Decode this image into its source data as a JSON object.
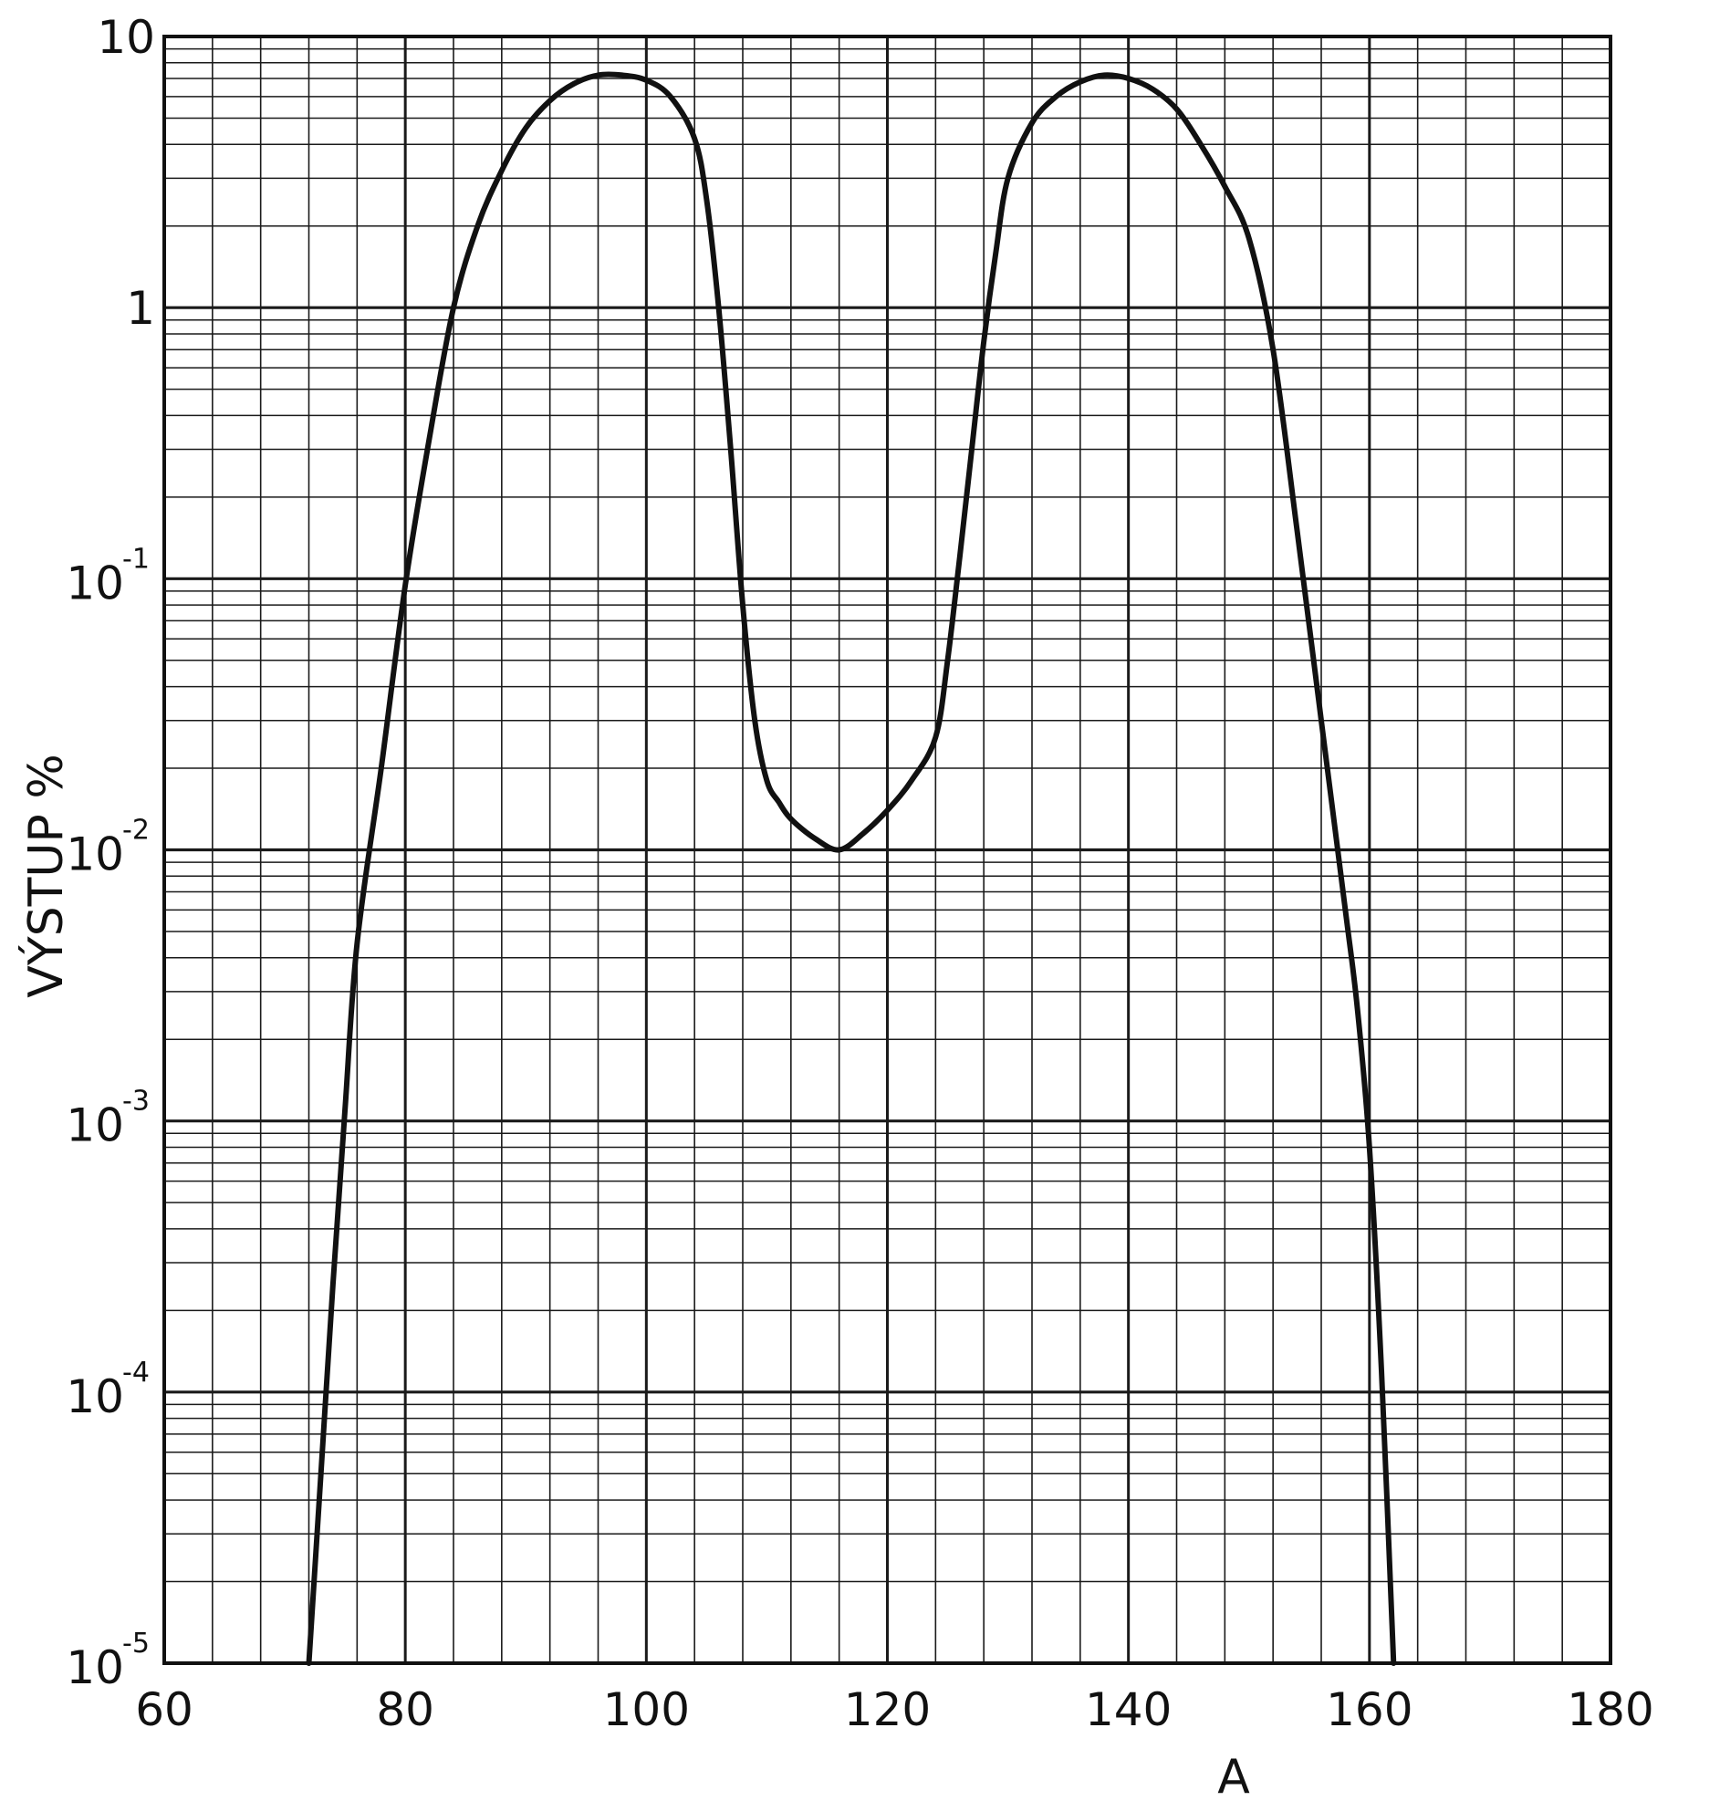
{
  "chart_data": {
    "type": "line",
    "xlabel": "A",
    "ylabel": "VÝSTUP %",
    "xlim": [
      60,
      180
    ],
    "ylim": [
      1e-05,
      10
    ],
    "y_scale": "log",
    "grid": true,
    "x_ticks": [
      "60",
      "80",
      "100",
      "120",
      "140",
      "160",
      "180"
    ],
    "y_ticks": [
      {
        "value": 10,
        "base": "10",
        "exp": ""
      },
      {
        "value": 1,
        "base": "1",
        "exp": ""
      },
      {
        "value": 0.1,
        "base": "10",
        "exp": "-1"
      },
      {
        "value": 0.01,
        "base": "10",
        "exp": "-2"
      },
      {
        "value": 0.001,
        "base": "10",
        "exp": "-3"
      },
      {
        "value": 0.0001,
        "base": "10",
        "exp": "-4"
      },
      {
        "value": 1e-05,
        "base": "10",
        "exp": "-5"
      }
    ],
    "series": [
      {
        "x": [
          72,
          73,
          74,
          75,
          76,
          78,
          80,
          82,
          84,
          86,
          88,
          90,
          92,
          94,
          96,
          98,
          100,
          102,
          104,
          105,
          106,
          107,
          108,
          109,
          110,
          111,
          112,
          114,
          116,
          118,
          120,
          122,
          124,
          125,
          126,
          127,
          128,
          129,
          130,
          132,
          134,
          136,
          138,
          140,
          142,
          144,
          146,
          148,
          150,
          152,
          154,
          156,
          158,
          159,
          160,
          161,
          162
        ],
        "y": [
          1e-05,
          5e-05,
          0.00025,
          0.0011,
          0.0045,
          0.02,
          0.095,
          0.33,
          1.0,
          2.0,
          3.2,
          4.6,
          5.8,
          6.7,
          7.2,
          7.2,
          6.9,
          6.0,
          4.2,
          2.5,
          1.0,
          0.3,
          0.08,
          0.03,
          0.018,
          0.015,
          0.013,
          0.011,
          0.01,
          0.0115,
          0.014,
          0.018,
          0.026,
          0.05,
          0.12,
          0.3,
          0.75,
          1.6,
          3.0,
          4.8,
          6.0,
          6.8,
          7.2,
          7.0,
          6.4,
          5.4,
          4.0,
          2.8,
          1.8,
          0.7,
          0.15,
          0.03,
          0.006,
          0.0026,
          0.0008,
          0.00012,
          1e-05
        ]
      }
    ]
  }
}
